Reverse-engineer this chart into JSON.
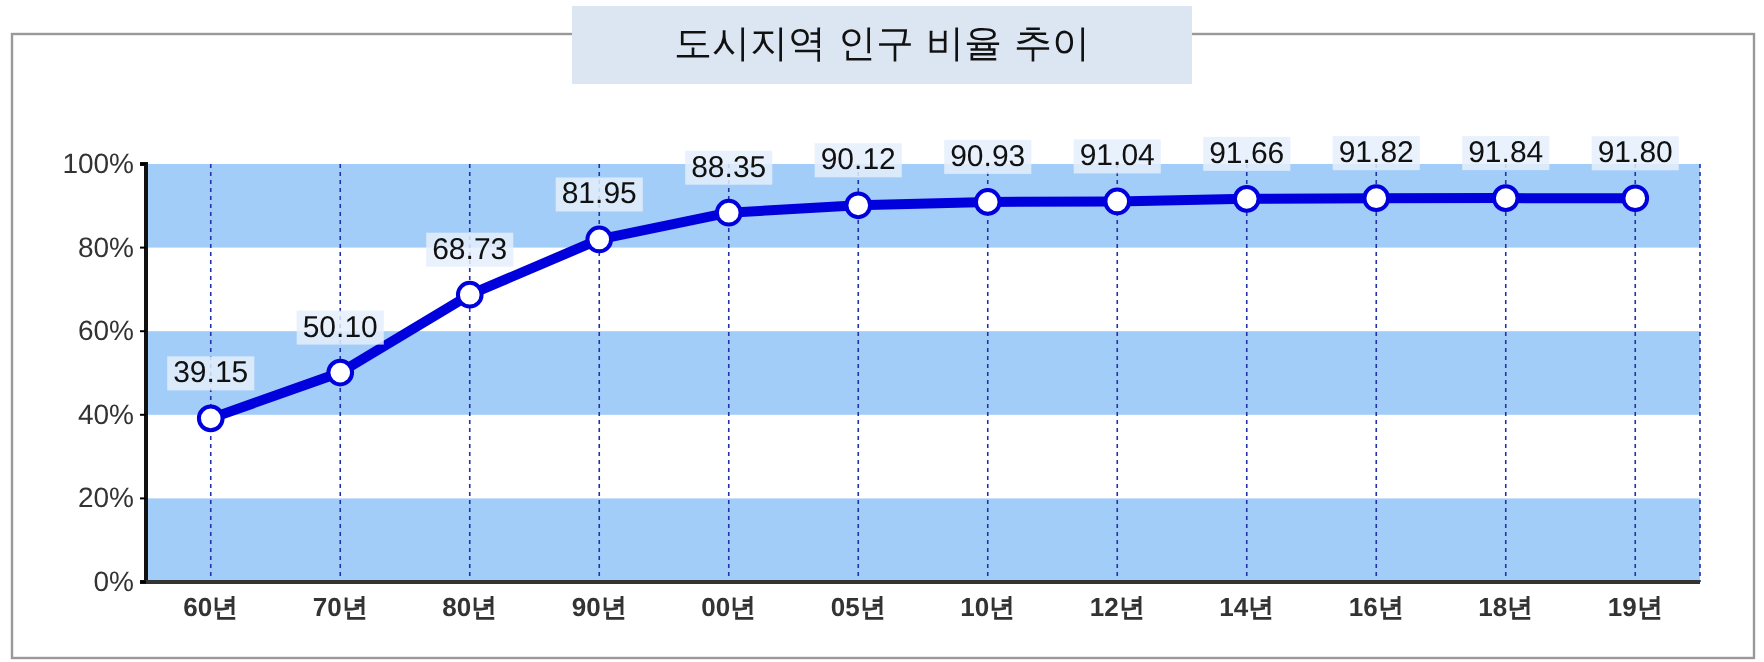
{
  "chart_data": {
    "type": "line",
    "title": "도시지역 인구 비율 추이",
    "categories": [
      "60년",
      "70년",
      "80년",
      "90년",
      "00년",
      "05년",
      "10년",
      "12년",
      "14년",
      "16년",
      "18년",
      "19년"
    ],
    "series": [
      {
        "color": "#0000dd",
        "values": [
          39.15,
          50.1,
          68.73,
          81.95,
          88.35,
          90.12,
          90.93,
          91.04,
          91.66,
          91.82,
          91.84,
          91.8
        ]
      }
    ],
    "value_labels": [
      "39.15",
      "50.10",
      "68.73",
      "81.95",
      "88.35",
      "90.12",
      "90.93",
      "91.04",
      "91.66",
      "91.82",
      "91.84",
      "91.80"
    ],
    "ylim": [
      0,
      100
    ],
    "yticks": [
      {
        "value": 0,
        "label": "0%"
      },
      {
        "value": 20,
        "label": "20%"
      },
      {
        "value": 40,
        "label": "40%"
      },
      {
        "value": 60,
        "label": "60%"
      },
      {
        "value": 80,
        "label": "80%"
      },
      {
        "value": 100,
        "label": "100%"
      }
    ],
    "bands": [
      {
        "axis": "y",
        "from": 0,
        "to": 20,
        "color": "#a3cdf9"
      },
      {
        "axis": "y",
        "from": 40,
        "to": 60,
        "color": "#a3cdf9"
      },
      {
        "axis": "y",
        "from": 80,
        "to": 100,
        "color": "#a3cdf9"
      }
    ],
    "grid": "x",
    "marker": "circle",
    "line_style": "solid"
  }
}
